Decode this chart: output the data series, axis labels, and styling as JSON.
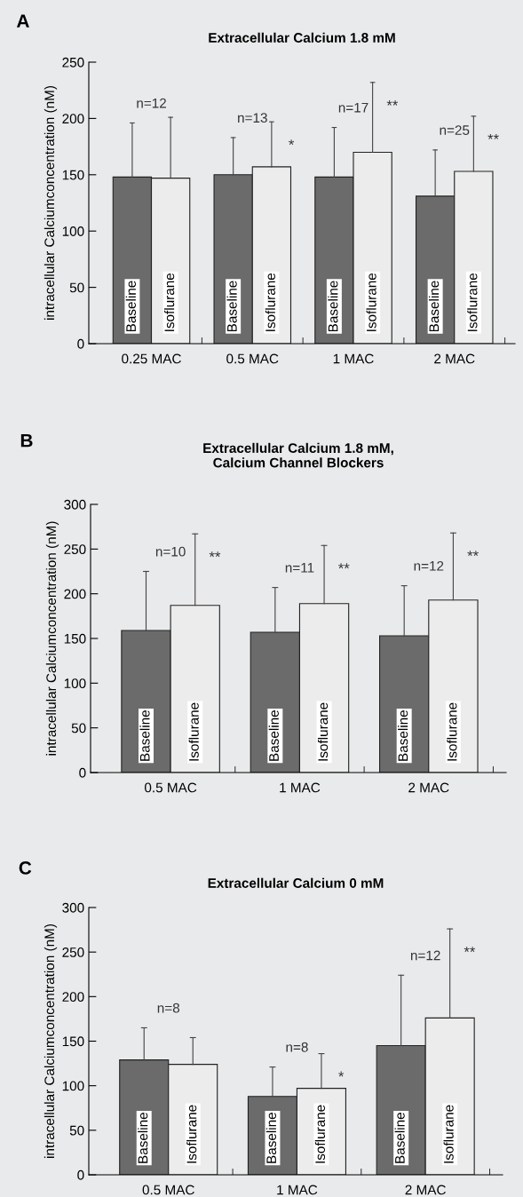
{
  "chart_data": [
    {
      "type": "bar",
      "title": "Extracellular Calcium 1.8 mM",
      "ylabel": "intracellular Calciumconcentration (nM)",
      "categories": [
        "0.25 MAC",
        "0.5 MAC",
        "1 MAC",
        "2 MAC"
      ],
      "series": [
        {
          "name": "Baseline",
          "color": "#6b6b6b",
          "values": [
            148,
            150,
            148,
            131
          ],
          "errors": [
            [
              148,
              196
            ],
            [
              150,
              183
            ],
            [
              148,
              192
            ],
            [
              131,
              172
            ]
          ]
        },
        {
          "name": "Isoflurane",
          "color": "#ececec",
          "values": [
            147,
            157,
            170,
            153
          ],
          "errors": [
            [
              147,
              201
            ],
            [
              157,
              197
            ],
            [
              170,
              232
            ],
            [
              153,
              202
            ]
          ]
        }
      ],
      "ylim": [
        0,
        250
      ],
      "yticks": [
        0,
        50,
        100,
        150,
        200,
        250
      ],
      "grid": false,
      "legend": false,
      "annotations": [
        "A",
        "n=12",
        "n=13",
        "n=17",
        "n=25",
        "*",
        "**",
        "**"
      ]
    },
    {
      "type": "bar",
      "title": "Extracellular Calcium 1.8 mM,\nCalcium Channel Blockers",
      "ylabel": "intracellular Calciumconcentration (nM)",
      "categories": [
        "0.5 MAC",
        "1 MAC",
        "2 MAC"
      ],
      "series": [
        {
          "name": "Baseline",
          "color": "#6b6b6b",
          "values": [
            159,
            157,
            153
          ],
          "errors": [
            [
              159,
              225
            ],
            [
              157,
              207
            ],
            [
              153,
              209
            ]
          ]
        },
        {
          "name": "Isoflurane",
          "color": "#ececec",
          "values": [
            187,
            189,
            193
          ],
          "errors": [
            [
              187,
              267
            ],
            [
              189,
              254
            ],
            [
              193,
              268
            ]
          ]
        }
      ],
      "ylim": [
        0,
        300
      ],
      "yticks": [
        0,
        50,
        100,
        150,
        200,
        250,
        300
      ],
      "grid": false,
      "legend": false,
      "annotations": [
        "B",
        "n=10",
        "n=11",
        "n=12",
        "**",
        "**",
        "**"
      ]
    },
    {
      "type": "bar",
      "title": "Extracellular Calcium 0 mM",
      "ylabel": "intracellular Calciumconcentration (nM)",
      "categories": [
        "0.5 MAC",
        "1 MAC",
        "2 MAC"
      ],
      "series": [
        {
          "name": "Baseline",
          "color": "#6b6b6b",
          "values": [
            129,
            88,
            145
          ],
          "errors": [
            [
              129,
              165
            ],
            [
              88,
              121
            ],
            [
              145,
              224
            ]
          ]
        },
        {
          "name": "Isoflurane",
          "color": "#ececec",
          "values": [
            124,
            97,
            176
          ],
          "errors": [
            [
              124,
              154
            ],
            [
              97,
              136
            ],
            [
              176,
              276
            ]
          ]
        }
      ],
      "ylim": [
        0,
        300
      ],
      "yticks": [
        0,
        50,
        100,
        150,
        200,
        250,
        300
      ],
      "grid": false,
      "legend": false,
      "annotations": [
        "C",
        "n=8",
        "n=8",
        "n=12",
        "*",
        "**"
      ]
    }
  ]
}
